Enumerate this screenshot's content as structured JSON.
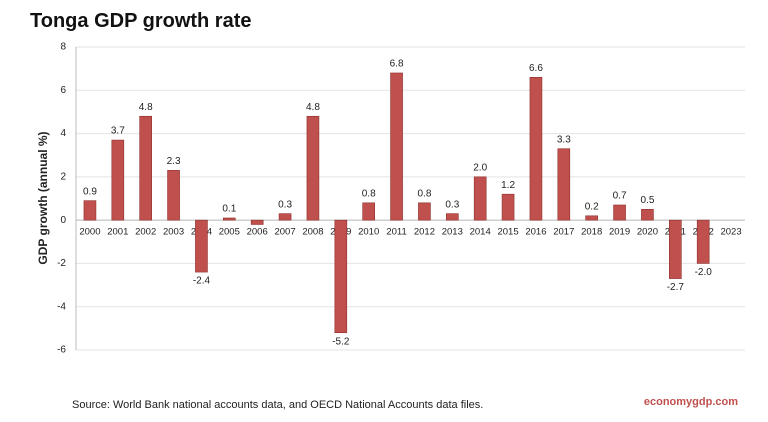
{
  "chart_data": {
    "type": "bar",
    "title": "Tonga GDP growth rate",
    "y_label": "GDP growth (annual %)",
    "source": "Source: World Bank national accounts data, and OECD National Accounts data files.",
    "watermark": "economygdp.com",
    "categories": [
      "2000",
      "2001",
      "2002",
      "2003",
      "2004",
      "2005",
      "2006",
      "2007",
      "2008",
      "2009",
      "2010",
      "2011",
      "2012",
      "2013",
      "2014",
      "2015",
      "2016",
      "2017",
      "2018",
      "2019",
      "2020",
      "2021",
      "2022",
      "2023"
    ],
    "values": [
      0.9,
      3.7,
      4.8,
      2.3,
      -2.4,
      0.1,
      -0.2,
      0.3,
      4.8,
      -5.2,
      0.8,
      6.8,
      0.8,
      0.3,
      2.0,
      1.2,
      6.6,
      3.3,
      0.2,
      0.7,
      0.5,
      -2.7,
      -2.0,
      null
    ],
    "value_labels": [
      "0.9",
      "3.7",
      "4.8",
      "2.3",
      "-2.4",
      "0.1",
      null,
      "0.3",
      "4.8",
      "-5.2",
      "0.8",
      "6.8",
      "0.8",
      "0.3",
      "2.0",
      "1.2",
      "6.6",
      "3.3",
      "0.2",
      "0.7",
      "0.5",
      "-2.7",
      "-2.0",
      null
    ],
    "color": "#c0504d",
    "ylim": [
      -6,
      8
    ],
    "yticks": [
      -6,
      -4,
      -2,
      0,
      2,
      4,
      6,
      8
    ],
    "grid": true
  }
}
